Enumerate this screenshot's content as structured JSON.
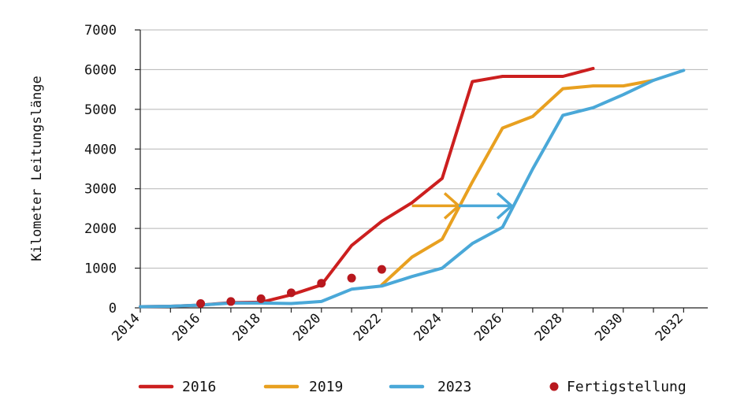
{
  "chart_data": {
    "type": "line",
    "ylabel": "Kilometer Leitungslänge",
    "xlabel": "",
    "xlim": [
      2014,
      2032.8
    ],
    "ylim": [
      0,
      7000
    ],
    "x_ticks": [
      2014,
      2016,
      2018,
      2020,
      2022,
      2024,
      2026,
      2028,
      2030,
      2032
    ],
    "y_ticks": [
      0,
      1000,
      2000,
      3000,
      4000,
      5000,
      6000,
      7000
    ],
    "grid": "horizontal",
    "legend_position": "bottom",
    "series": [
      {
        "name": "2016",
        "color": "#cc1f1f",
        "points": [
          [
            2014,
            30
          ],
          [
            2015,
            40
          ],
          [
            2016,
            70
          ],
          [
            2017,
            130
          ],
          [
            2018,
            140
          ],
          [
            2019,
            330
          ],
          [
            2020,
            580
          ],
          [
            2021,
            1570
          ],
          [
            2022,
            2180
          ],
          [
            2023,
            2650
          ],
          [
            2024,
            3260
          ],
          [
            2025,
            5700
          ],
          [
            2026,
            5830
          ],
          [
            2027,
            5830
          ],
          [
            2028,
            5830
          ],
          [
            2029,
            6030
          ]
        ]
      },
      {
        "name": "2019",
        "color": "#e8a020",
        "points": [
          [
            2022,
            580
          ],
          [
            2023,
            1280
          ],
          [
            2024,
            1730
          ],
          [
            2025,
            3170
          ],
          [
            2026,
            4530
          ],
          [
            2027,
            4820
          ],
          [
            2028,
            5520
          ],
          [
            2029,
            5590
          ],
          [
            2030,
            5590
          ],
          [
            2031,
            5730
          ]
        ]
      },
      {
        "name": "2023",
        "color": "#4aa8d8",
        "points": [
          [
            2014,
            30
          ],
          [
            2015,
            40
          ],
          [
            2016,
            70
          ],
          [
            2017,
            120
          ],
          [
            2018,
            120
          ],
          [
            2019,
            110
          ],
          [
            2020,
            160
          ],
          [
            2021,
            470
          ],
          [
            2022,
            550
          ],
          [
            2023,
            790
          ],
          [
            2024,
            1000
          ],
          [
            2025,
            1620
          ],
          [
            2026,
            2030
          ],
          [
            2027,
            3500
          ],
          [
            2028,
            4850
          ],
          [
            2029,
            5040
          ],
          [
            2030,
            5370
          ],
          [
            2031,
            5730
          ],
          [
            2032,
            5980
          ]
        ]
      },
      {
        "name": "Fertigstellung",
        "color": "#b8181e",
        "type": "scatter",
        "points": [
          [
            2016,
            110
          ],
          [
            2017,
            160
          ],
          [
            2018,
            230
          ],
          [
            2019,
            380
          ],
          [
            2020,
            620
          ],
          [
            2021,
            750
          ],
          [
            2022,
            970
          ]
        ]
      }
    ],
    "annotations": [
      {
        "type": "arrow",
        "color": "#e8a020",
        "from": [
          2023,
          2570
        ],
        "to": [
          2024.55,
          2570
        ]
      },
      {
        "type": "arrow",
        "color": "#4aa8d8",
        "from": [
          2024.55,
          2570
        ],
        "to": [
          2026.3,
          2570
        ]
      }
    ]
  }
}
